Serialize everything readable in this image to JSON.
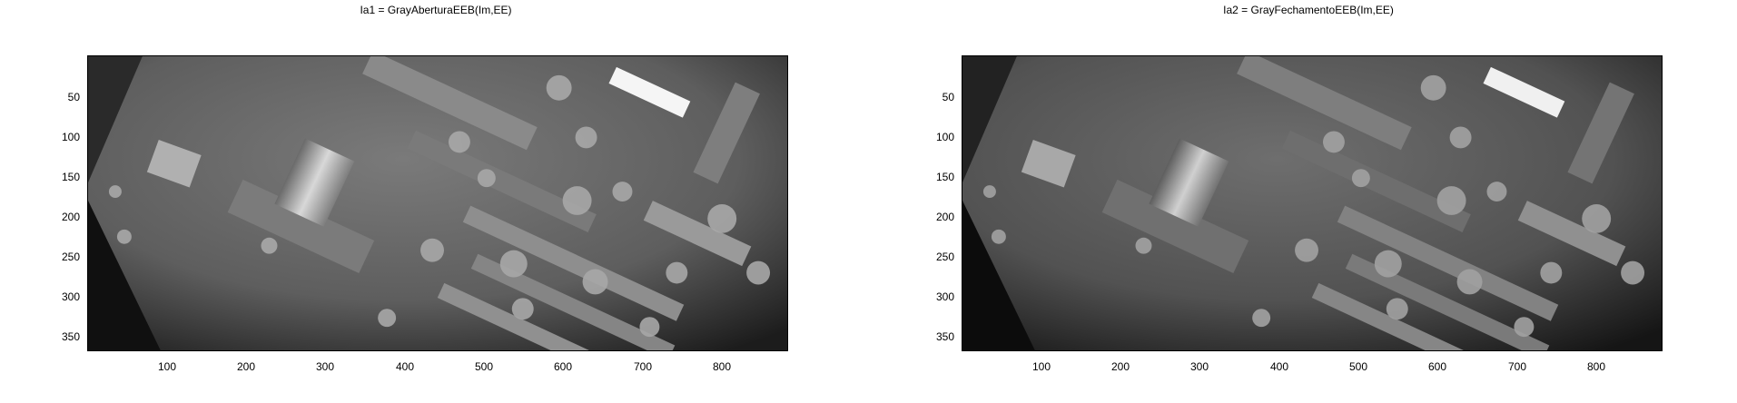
{
  "figure": {
    "panels": [
      {
        "title": "Ia1 = GrayAberturaEEB(Im,EE)",
        "yticks": [
          "50",
          "100",
          "150",
          "200",
          "250",
          "300",
          "350"
        ],
        "xticks": [
          "100",
          "200",
          "300",
          "400",
          "500",
          "600",
          "700",
          "800"
        ]
      },
      {
        "title": "Ia2 = GrayFechamentoEEB(Im,EE)",
        "yticks": [
          "50",
          "100",
          "150",
          "200",
          "250",
          "300",
          "350"
        ],
        "xticks": [
          "100",
          "200",
          "300",
          "400",
          "500",
          "600",
          "700",
          "800"
        ]
      }
    ],
    "image_colormap": "gray",
    "axis_limits": {
      "x": [
        1,
        880
      ],
      "y": [
        1,
        372
      ]
    }
  }
}
